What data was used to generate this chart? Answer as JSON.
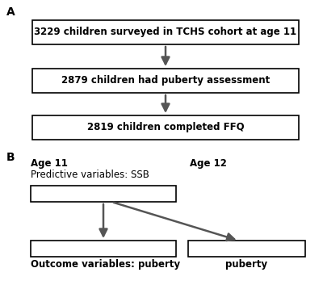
{
  "background_color": "#ffffff",
  "panel_A_label": "A",
  "panel_B_label": "B",
  "box1_text": "3229 children surveyed in TCHS cohort at age 11",
  "box2_text": "2879 children had puberty assessment",
  "box3_text": "2819 children completed FFQ",
  "age11_label": "Age 11",
  "age12_label": "Age 12",
  "predictive_label": "Predictive variables: SSB",
  "outcome_label": "Outcome variables: puberty",
  "puberty_label": "puberty",
  "arrow_color": "#555555",
  "box_edge_color": "#000000",
  "text_color": "#000000",
  "font_size_boxes": 8.5,
  "font_size_labels": 8.5,
  "font_size_panel": 10,
  "fig_width": 4.0,
  "fig_height": 3.58,
  "dpi": 100
}
